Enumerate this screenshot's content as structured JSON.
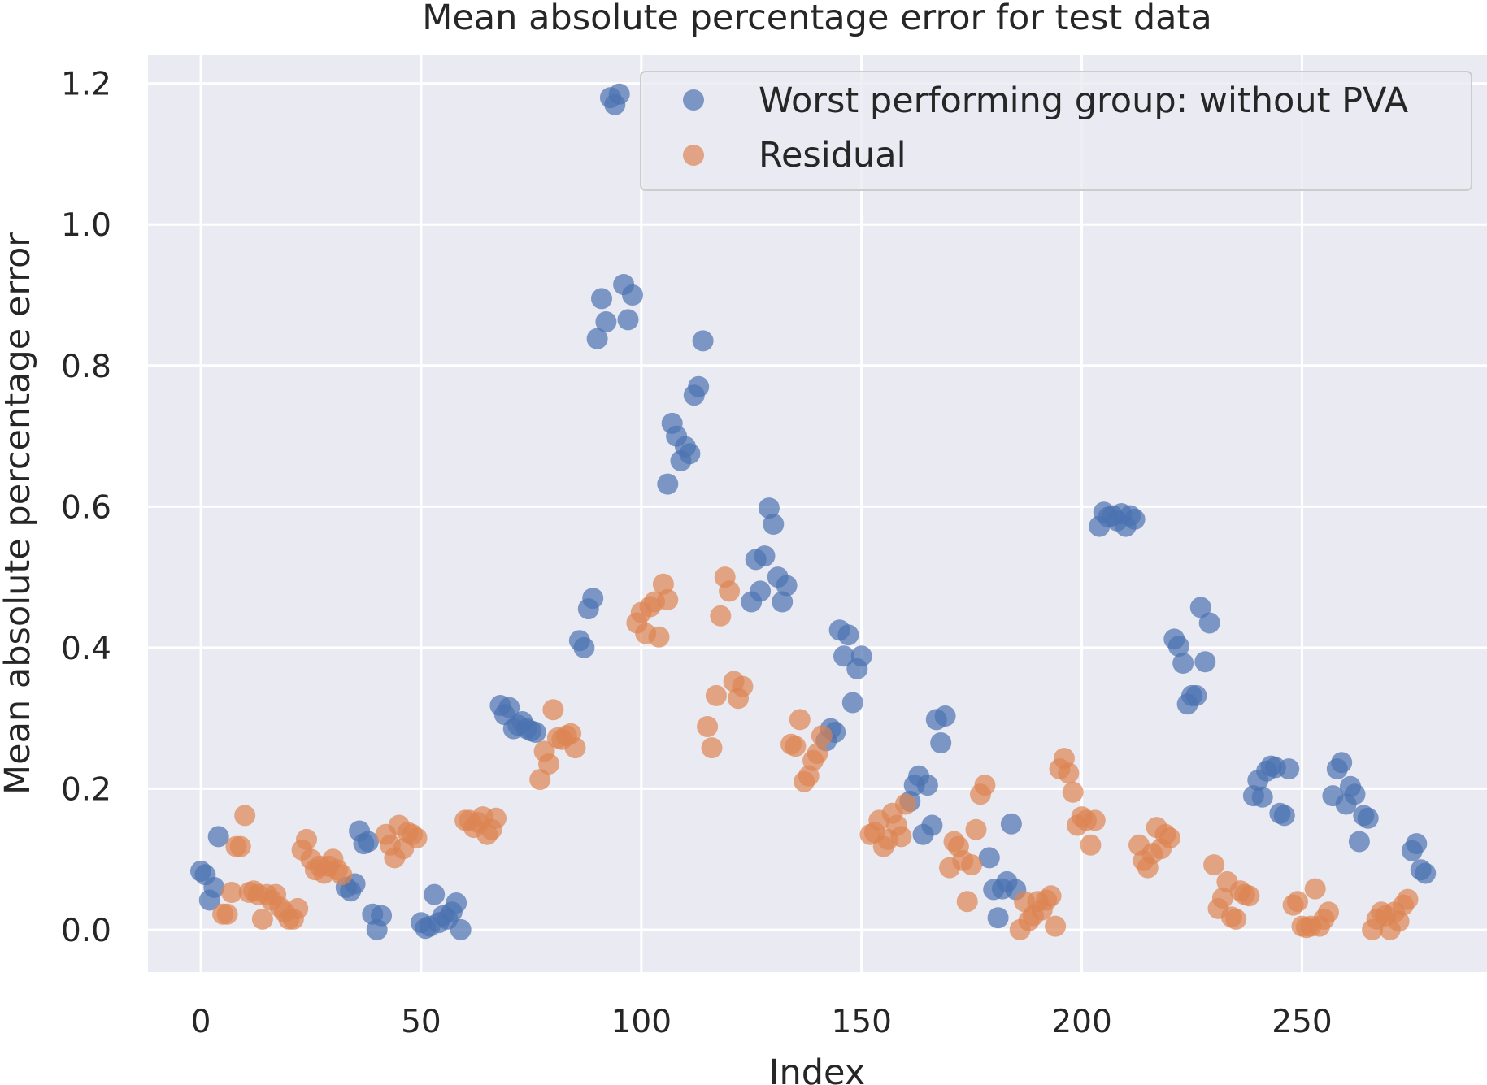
{
  "chart_data": {
    "type": "scatter",
    "title": "Mean absolute percentage error for test data",
    "xlabel": "Index",
    "ylabel": "Mean absolute percentage error",
    "xlim": [
      -12,
      292
    ],
    "ylim": [
      -0.06,
      1.24
    ],
    "xticks": [
      0,
      50,
      100,
      150,
      200,
      250
    ],
    "yticks": [
      0.0,
      0.2,
      0.4,
      0.6,
      0.8,
      1.0,
      1.2
    ],
    "xtick_labels": [
      "0",
      "50",
      "100",
      "150",
      "200",
      "250"
    ],
    "ytick_labels": [
      "0.0",
      "0.2",
      "0.4",
      "0.6",
      "0.8",
      "1.0",
      "1.2"
    ],
    "grid": true,
    "legend_position": "top-right",
    "series": [
      {
        "name": "Worst performing group: without PVA",
        "color": "#4c72b0",
        "points": [
          [
            0,
            0.083
          ],
          [
            1,
            0.078
          ],
          [
            2,
            0.042
          ],
          [
            3,
            0.06
          ],
          [
            4,
            0.132
          ],
          [
            33,
            0.06
          ],
          [
            34,
            0.055
          ],
          [
            35,
            0.065
          ],
          [
            36,
            0.14
          ],
          [
            37,
            0.122
          ],
          [
            38,
            0.125
          ],
          [
            39,
            0.022
          ],
          [
            40,
            0.0
          ],
          [
            41,
            0.02
          ],
          [
            50,
            0.01
          ],
          [
            51,
            0.002
          ],
          [
            52,
            0.005
          ],
          [
            53,
            0.05
          ],
          [
            54,
            0.01
          ],
          [
            55,
            0.02
          ],
          [
            56,
            0.015
          ],
          [
            57,
            0.025
          ],
          [
            58,
            0.038
          ],
          [
            59,
            0.0
          ],
          [
            68,
            0.318
          ],
          [
            69,
            0.305
          ],
          [
            70,
            0.315
          ],
          [
            71,
            0.285
          ],
          [
            72,
            0.29
          ],
          [
            73,
            0.295
          ],
          [
            74,
            0.285
          ],
          [
            75,
            0.282
          ],
          [
            76,
            0.28
          ],
          [
            86,
            0.41
          ],
          [
            87,
            0.4
          ],
          [
            88,
            0.455
          ],
          [
            89,
            0.47
          ],
          [
            90,
            0.838
          ],
          [
            91,
            0.895
          ],
          [
            92,
            0.862
          ],
          [
            93,
            1.18
          ],
          [
            94,
            1.17
          ],
          [
            95,
            1.185
          ],
          [
            96,
            0.915
          ],
          [
            97,
            0.865
          ],
          [
            98,
            0.9
          ],
          [
            106,
            0.632
          ],
          [
            107,
            0.718
          ],
          [
            108,
            0.7
          ],
          [
            109,
            0.665
          ],
          [
            110,
            0.685
          ],
          [
            111,
            0.675
          ],
          [
            112,
            0.758
          ],
          [
            113,
            0.77
          ],
          [
            114,
            0.835
          ],
          [
            125,
            0.465
          ],
          [
            126,
            0.525
          ],
          [
            127,
            0.48
          ],
          [
            128,
            0.53
          ],
          [
            129,
            0.598
          ],
          [
            130,
            0.575
          ],
          [
            131,
            0.5
          ],
          [
            132,
            0.465
          ],
          [
            133,
            0.488
          ],
          [
            142,
            0.268
          ],
          [
            143,
            0.285
          ],
          [
            144,
            0.28
          ],
          [
            145,
            0.425
          ],
          [
            146,
            0.388
          ],
          [
            147,
            0.418
          ],
          [
            148,
            0.322
          ],
          [
            149,
            0.37
          ],
          [
            150,
            0.388
          ],
          [
            161,
            0.182
          ],
          [
            162,
            0.205
          ],
          [
            163,
            0.218
          ],
          [
            164,
            0.135
          ],
          [
            165,
            0.205
          ],
          [
            166,
            0.148
          ],
          [
            167,
            0.298
          ],
          [
            168,
            0.265
          ],
          [
            169,
            0.303
          ],
          [
            179,
            0.102
          ],
          [
            180,
            0.057
          ],
          [
            181,
            0.017
          ],
          [
            182,
            0.058
          ],
          [
            183,
            0.068
          ],
          [
            184,
            0.15
          ],
          [
            185,
            0.057
          ],
          [
            204,
            0.572
          ],
          [
            205,
            0.592
          ],
          [
            206,
            0.585
          ],
          [
            207,
            0.587
          ],
          [
            208,
            0.58
          ],
          [
            209,
            0.59
          ],
          [
            210,
            0.572
          ],
          [
            211,
            0.587
          ],
          [
            212,
            0.582
          ],
          [
            221,
            0.412
          ],
          [
            222,
            0.402
          ],
          [
            223,
            0.378
          ],
          [
            224,
            0.32
          ],
          [
            225,
            0.332
          ],
          [
            226,
            0.332
          ],
          [
            227,
            0.457
          ],
          [
            228,
            0.38
          ],
          [
            229,
            0.435
          ],
          [
            239,
            0.19
          ],
          [
            240,
            0.212
          ],
          [
            241,
            0.188
          ],
          [
            242,
            0.225
          ],
          [
            243,
            0.232
          ],
          [
            244,
            0.23
          ],
          [
            245,
            0.165
          ],
          [
            246,
            0.162
          ],
          [
            247,
            0.228
          ],
          [
            257,
            0.19
          ],
          [
            258,
            0.228
          ],
          [
            259,
            0.237
          ],
          [
            260,
            0.178
          ],
          [
            261,
            0.203
          ],
          [
            262,
            0.192
          ],
          [
            263,
            0.125
          ],
          [
            264,
            0.162
          ],
          [
            265,
            0.158
          ],
          [
            275,
            0.112
          ],
          [
            276,
            0.122
          ],
          [
            277,
            0.085
          ],
          [
            278,
            0.08
          ]
        ]
      },
      {
        "name": "Residual",
        "color": "#dd8452",
        "points": [
          [
            5,
            0.022
          ],
          [
            6,
            0.022
          ],
          [
            7,
            0.053
          ],
          [
            8,
            0.118
          ],
          [
            9,
            0.118
          ],
          [
            10,
            0.162
          ],
          [
            11,
            0.053
          ],
          [
            12,
            0.055
          ],
          [
            13,
            0.05
          ],
          [
            14,
            0.015
          ],
          [
            15,
            0.05
          ],
          [
            16,
            0.042
          ],
          [
            17,
            0.05
          ],
          [
            18,
            0.032
          ],
          [
            19,
            0.025
          ],
          [
            20,
            0.015
          ],
          [
            21,
            0.015
          ],
          [
            22,
            0.03
          ],
          [
            23,
            0.113
          ],
          [
            24,
            0.128
          ],
          [
            25,
            0.1
          ],
          [
            26,
            0.085
          ],
          [
            27,
            0.09
          ],
          [
            28,
            0.08
          ],
          [
            29,
            0.09
          ],
          [
            30,
            0.1
          ],
          [
            31,
            0.085
          ],
          [
            32,
            0.078
          ],
          [
            42,
            0.135
          ],
          [
            43,
            0.12
          ],
          [
            44,
            0.102
          ],
          [
            45,
            0.148
          ],
          [
            46,
            0.115
          ],
          [
            47,
            0.138
          ],
          [
            48,
            0.135
          ],
          [
            49,
            0.13
          ],
          [
            60,
            0.155
          ],
          [
            61,
            0.155
          ],
          [
            62,
            0.145
          ],
          [
            63,
            0.152
          ],
          [
            64,
            0.16
          ],
          [
            65,
            0.135
          ],
          [
            66,
            0.142
          ],
          [
            67,
            0.158
          ],
          [
            77,
            0.213
          ],
          [
            78,
            0.253
          ],
          [
            79,
            0.235
          ],
          [
            80,
            0.312
          ],
          [
            81,
            0.272
          ],
          [
            82,
            0.27
          ],
          [
            83,
            0.275
          ],
          [
            84,
            0.278
          ],
          [
            85,
            0.258
          ],
          [
            99,
            0.435
          ],
          [
            100,
            0.45
          ],
          [
            101,
            0.42
          ],
          [
            102,
            0.458
          ],
          [
            103,
            0.465
          ],
          [
            104,
            0.415
          ],
          [
            105,
            0.49
          ],
          [
            106,
            0.468
          ],
          [
            115,
            0.288
          ],
          [
            116,
            0.258
          ],
          [
            117,
            0.332
          ],
          [
            118,
            0.445
          ],
          [
            119,
            0.5
          ],
          [
            120,
            0.48
          ],
          [
            121,
            0.352
          ],
          [
            122,
            0.328
          ],
          [
            123,
            0.345
          ],
          [
            134,
            0.263
          ],
          [
            135,
            0.26
          ],
          [
            136,
            0.298
          ],
          [
            137,
            0.21
          ],
          [
            138,
            0.218
          ],
          [
            139,
            0.24
          ],
          [
            140,
            0.25
          ],
          [
            141,
            0.275
          ],
          [
            152,
            0.135
          ],
          [
            153,
            0.138
          ],
          [
            154,
            0.155
          ],
          [
            155,
            0.118
          ],
          [
            156,
            0.128
          ],
          [
            157,
            0.165
          ],
          [
            158,
            0.148
          ],
          [
            159,
            0.132
          ],
          [
            160,
            0.178
          ],
          [
            170,
            0.088
          ],
          [
            171,
            0.125
          ],
          [
            172,
            0.118
          ],
          [
            173,
            0.098
          ],
          [
            174,
            0.04
          ],
          [
            175,
            0.092
          ],
          [
            176,
            0.142
          ],
          [
            177,
            0.192
          ],
          [
            178,
            0.205
          ],
          [
            186,
            0.0
          ],
          [
            187,
            0.04
          ],
          [
            188,
            0.013
          ],
          [
            189,
            0.02
          ],
          [
            190,
            0.04
          ],
          [
            191,
            0.028
          ],
          [
            192,
            0.042
          ],
          [
            193,
            0.048
          ],
          [
            194,
            0.005
          ],
          [
            195,
            0.228
          ],
          [
            196,
            0.243
          ],
          [
            197,
            0.222
          ],
          [
            198,
            0.195
          ],
          [
            199,
            0.148
          ],
          [
            200,
            0.16
          ],
          [
            201,
            0.155
          ],
          [
            202,
            0.12
          ],
          [
            203,
            0.155
          ],
          [
            213,
            0.12
          ],
          [
            214,
            0.098
          ],
          [
            215,
            0.088
          ],
          [
            216,
            0.108
          ],
          [
            217,
            0.145
          ],
          [
            218,
            0.115
          ],
          [
            219,
            0.135
          ],
          [
            220,
            0.13
          ],
          [
            230,
            0.092
          ],
          [
            231,
            0.03
          ],
          [
            232,
            0.045
          ],
          [
            233,
            0.068
          ],
          [
            234,
            0.018
          ],
          [
            235,
            0.015
          ],
          [
            236,
            0.055
          ],
          [
            237,
            0.05
          ],
          [
            238,
            0.048
          ],
          [
            248,
            0.035
          ],
          [
            249,
            0.04
          ],
          [
            250,
            0.005
          ],
          [
            251,
            0.003
          ],
          [
            252,
            0.005
          ],
          [
            253,
            0.058
          ],
          [
            254,
            0.005
          ],
          [
            255,
            0.015
          ],
          [
            256,
            0.025
          ],
          [
            266,
            0.0
          ],
          [
            267,
            0.015
          ],
          [
            268,
            0.025
          ],
          [
            269,
            0.02
          ],
          [
            270,
            0.0
          ],
          [
            271,
            0.025
          ],
          [
            272,
            0.012
          ],
          [
            273,
            0.035
          ],
          [
            274,
            0.043
          ]
        ]
      }
    ]
  }
}
